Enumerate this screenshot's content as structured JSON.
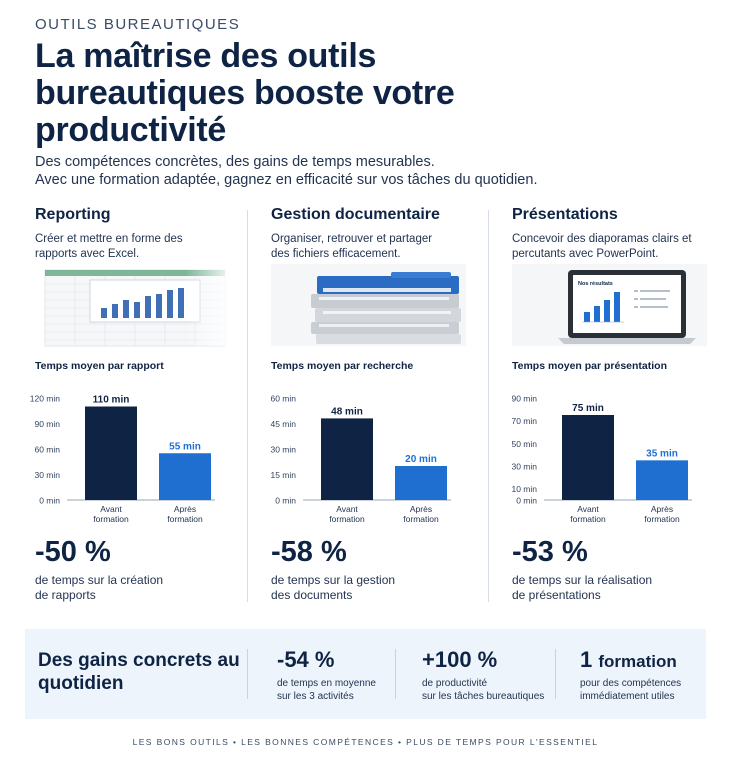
{
  "header": {
    "eyebrow": "OUTILS BUREAUTIQUES",
    "title": "La maîtrise des outils bureautiques booste votre productivité",
    "subtitle_line1": "Des compétences concrètes, des gains de temps mesurables.",
    "subtitle_line2": "Avec une formation adaptée, gagnez en efficacité sur vos tâches du quotidien."
  },
  "columns": [
    {
      "title": "Reporting",
      "description": "Créer et mettre en forme des rapports avec Excel.",
      "illustration": "spreadsheet-bar-chart",
      "percent": "-50 %",
      "percent_desc_line1": "de temps sur la création",
      "percent_desc_line2": "de rapports"
    },
    {
      "title": "Gestion documentaire",
      "description": "Organiser, retrouver et partager des fichiers efficacement.",
      "illustration": "binders-stack",
      "percent": "-58 %",
      "percent_desc_line1": "de temps sur la gestion",
      "percent_desc_line2": "des documents"
    },
    {
      "title": "Présentations",
      "description": "Concevoir des diaporamas clairs et percutants avec PowerPoint.",
      "illustration": "laptop-slide",
      "laptop_slide_label": "Nos résultats",
      "percent": "-53 %",
      "percent_desc_line1": "de temps sur la réalisation",
      "percent_desc_line2": "de présentations"
    }
  ],
  "chart_data": [
    {
      "type": "bar",
      "title": "Temps moyen par rapport",
      "categories": [
        "Avant formation",
        "Après formation"
      ],
      "values": [
        110,
        55
      ],
      "data_labels": [
        "110 min",
        "55 min"
      ],
      "yticks": [
        "0 min",
        "30 min",
        "60 min",
        "90 min",
        "120 min"
      ],
      "ytick_values": [
        0,
        30,
        60,
        90,
        120
      ],
      "ylim": [
        0,
        120
      ],
      "colors": [
        "#0f2444",
        "#1f6fd1"
      ]
    },
    {
      "type": "bar",
      "title": "Temps moyen par recherche",
      "categories": [
        "Avant formation",
        "Après formation"
      ],
      "values": [
        48,
        20
      ],
      "data_labels": [
        "48 min",
        "20 min"
      ],
      "yticks": [
        "0 min",
        "15 min",
        "30 min",
        "45 min",
        "60 min"
      ],
      "ytick_values": [
        0,
        15,
        30,
        45,
        60
      ],
      "ylim": [
        0,
        60
      ],
      "colors": [
        "#0f2444",
        "#1f6fd1"
      ]
    },
    {
      "type": "bar",
      "title": "Temps moyen par présentation",
      "categories": [
        "Avant formation",
        "Après formation"
      ],
      "values": [
        75,
        35
      ],
      "data_labels": [
        "75 min",
        "35 min"
      ],
      "yticks": [
        "0 min",
        "10 min",
        "30 min",
        "50 min",
        "70 min",
        "90 min"
      ],
      "ytick_values": [
        0,
        10,
        30,
        50,
        70,
        90
      ],
      "ylim": [
        0,
        90
      ],
      "colors": [
        "#0f2444",
        "#1f6fd1"
      ]
    }
  ],
  "band": {
    "title": "Des gains concrets au quotidien",
    "stats": [
      {
        "value": "-54 %",
        "desc_line1": "de temps en moyenne",
        "desc_line2": "sur les 3 activités"
      },
      {
        "value": "+100 %",
        "desc_line1": "de productivité",
        "desc_line2": "sur les tâches bureautiques"
      },
      {
        "value_num": "1",
        "value_word": "formation",
        "desc_line1": "pour des compétences",
        "desc_line2": "immédiatement utiles"
      }
    ]
  },
  "footer": {
    "text": "LES BONS OUTILS  •  LES BONNES COMPÉTENCES  •  PLUS DE TEMPS POUR L'ESSENTIEL"
  }
}
